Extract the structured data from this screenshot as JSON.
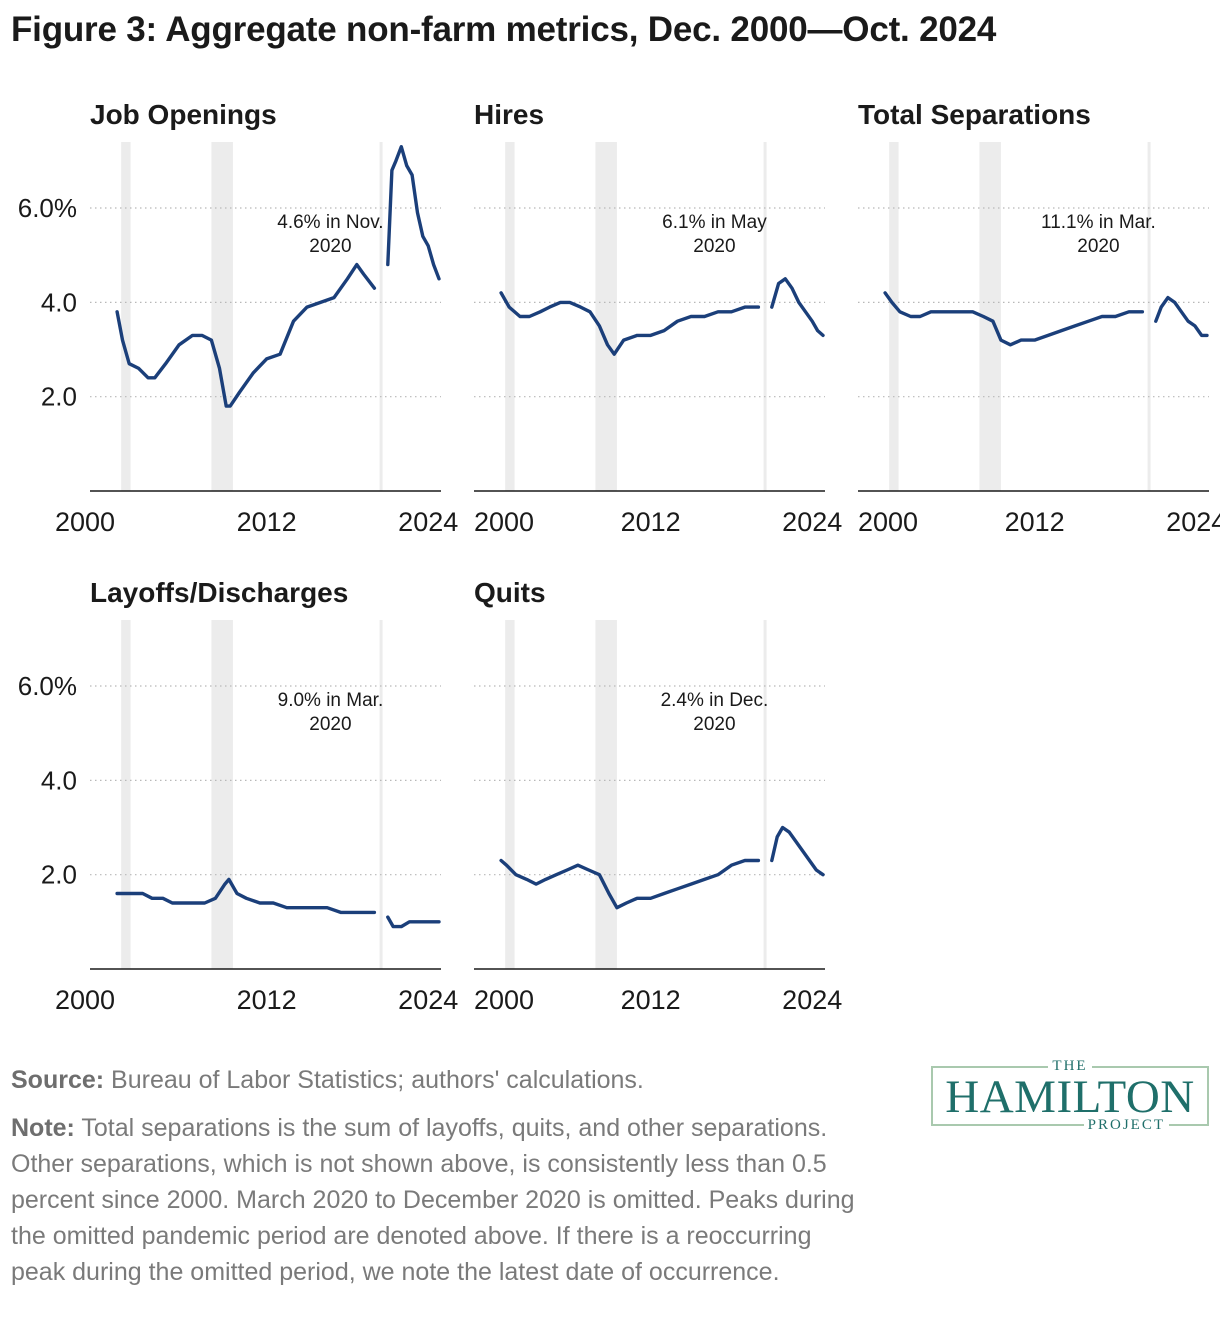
{
  "title": "Figure 3: Aggregate non-farm metrics, Dec. 2000—Oct. 2024",
  "footer": {
    "source_label": "Source:",
    "source_text": " Bureau of Labor Statistics; authors' calculations.",
    "note_label": "Note:",
    "note_text": " Total separations is the sum of layoffs, quits, and other separations. Other separations, which is not shown above, is consistently less than 0.5 percent since 2000. March 2020 to December 2020 is omitted. Peaks during the omitted pandemic period are denoted above. If there is a reoccurring peak during the omitted period, we note the latest date of occurrence."
  },
  "logo": {
    "top": "THE",
    "name": "HAMILTON",
    "bottom": "PROJECT"
  },
  "colors": {
    "line": "#1b3f7a",
    "recession": "#ececec",
    "grid": "#b8b8b8",
    "text": "#1a1a1a"
  },
  "chart_data": [
    {
      "type": "line",
      "title": "Job Openings",
      "xlim": [
        2000,
        2024.8
      ],
      "ylim": [
        0,
        7.4
      ],
      "xticks": [
        2000,
        2012,
        2024
      ],
      "xtick_labels": [
        "2000",
        "2012",
        "2024"
      ],
      "yticks": [
        2,
        4,
        6
      ],
      "ytick_labels": [
        "2.0",
        "4.0",
        "6.0%"
      ],
      "show_y_labels": true,
      "recessions": [
        [
          2001.2,
          2001.9
        ],
        [
          2007.9,
          2009.5
        ]
      ],
      "annotation": [
        "4.6% in Nov.",
        "2020"
      ],
      "segments": [
        {
          "x": [
            2000.9,
            2001.3,
            2001.8,
            2002.5,
            2003.2,
            2003.7,
            2004.5,
            2005.5,
            2006.5,
            2007.2,
            2007.9,
            2008.5,
            2009.0,
            2009.3,
            2010.0,
            2011.0,
            2012.0,
            2013.0,
            2014.0,
            2015.0,
            2016.0,
            2017.0,
            2018.0,
            2018.7,
            2019.2,
            2020.0
          ],
          "y": [
            3.8,
            3.2,
            2.7,
            2.6,
            2.4,
            2.4,
            2.7,
            3.1,
            3.3,
            3.3,
            3.2,
            2.6,
            1.8,
            1.8,
            2.1,
            2.5,
            2.8,
            2.9,
            3.6,
            3.9,
            4.0,
            4.1,
            4.5,
            4.8,
            4.6,
            4.3
          ]
        },
        {
          "x": [
            2021.0,
            2021.3,
            2021.6,
            2022.0,
            2022.4,
            2022.8,
            2023.2,
            2023.6,
            2024.0,
            2024.4,
            2024.8
          ],
          "y": [
            4.8,
            6.8,
            7.0,
            7.3,
            6.9,
            6.7,
            5.9,
            5.4,
            5.2,
            4.8,
            4.5
          ]
        }
      ]
    },
    {
      "type": "line",
      "title": "Hires",
      "xlim": [
        2000,
        2024.8
      ],
      "ylim": [
        0,
        7.4
      ],
      "xticks": [
        2000,
        2012,
        2024
      ],
      "xtick_labels": [
        "2000",
        "2012",
        "2024"
      ],
      "yticks": [
        2,
        4,
        6
      ],
      "ytick_labels": [
        "2.0",
        "4.0",
        "6.0%"
      ],
      "show_y_labels": false,
      "recessions": [
        [
          2001.2,
          2001.9
        ],
        [
          2007.9,
          2009.5
        ]
      ],
      "annotation": [
        "6.1% in May",
        "2020"
      ],
      "segments": [
        {
          "x": [
            2000.9,
            2001.5,
            2002.3,
            2003.0,
            2003.8,
            2004.5,
            2005.3,
            2006.0,
            2006.8,
            2007.5,
            2008.2,
            2008.8,
            2009.3,
            2010.0,
            2011.0,
            2012.0,
            2013.0,
            2014.0,
            2015.0,
            2016.0,
            2017.0,
            2018.0,
            2019.0,
            2020.0
          ],
          "y": [
            4.2,
            3.9,
            3.7,
            3.7,
            3.8,
            3.9,
            4.0,
            4.0,
            3.9,
            3.8,
            3.5,
            3.1,
            2.9,
            3.2,
            3.3,
            3.3,
            3.4,
            3.6,
            3.7,
            3.7,
            3.8,
            3.8,
            3.9,
            3.9
          ]
        },
        {
          "x": [
            2021.0,
            2021.5,
            2022.0,
            2022.5,
            2023.0,
            2023.5,
            2024.0,
            2024.4,
            2024.8
          ],
          "y": [
            3.9,
            4.4,
            4.5,
            4.3,
            4.0,
            3.8,
            3.6,
            3.4,
            3.3
          ]
        }
      ]
    },
    {
      "type": "line",
      "title": "Total Separations",
      "xlim": [
        2000,
        2024.8
      ],
      "ylim": [
        0,
        7.4
      ],
      "xticks": [
        2000,
        2012,
        2024
      ],
      "xtick_labels": [
        "2000",
        "2012",
        "2024"
      ],
      "yticks": [
        2,
        4,
        6
      ],
      "ytick_labels": [
        "2.0",
        "4.0",
        "6.0%"
      ],
      "show_y_labels": false,
      "recessions": [
        [
          2001.2,
          2001.9
        ],
        [
          2007.9,
          2009.5
        ]
      ],
      "annotation": [
        "11.1% in Mar.",
        "2020"
      ],
      "segments": [
        {
          "x": [
            2000.9,
            2001.4,
            2002.0,
            2002.8,
            2003.5,
            2004.3,
            2005.0,
            2005.8,
            2006.6,
            2007.4,
            2008.2,
            2008.9,
            2009.5,
            2010.2,
            2011.0,
            2012.0,
            2013.0,
            2014.0,
            2015.0,
            2016.0,
            2017.0,
            2018.0,
            2019.0,
            2020.0
          ],
          "y": [
            4.2,
            4.0,
            3.8,
            3.7,
            3.7,
            3.8,
            3.8,
            3.8,
            3.8,
            3.8,
            3.7,
            3.6,
            3.2,
            3.1,
            3.2,
            3.2,
            3.3,
            3.4,
            3.5,
            3.6,
            3.7,
            3.7,
            3.8,
            3.8
          ]
        },
        {
          "x": [
            2021.0,
            2021.4,
            2021.9,
            2022.4,
            2022.9,
            2023.4,
            2023.9,
            2024.4,
            2024.8
          ],
          "y": [
            3.6,
            3.9,
            4.1,
            4.0,
            3.8,
            3.6,
            3.5,
            3.3,
            3.3
          ]
        }
      ]
    },
    {
      "type": "line",
      "title": "Layoffs/Discharges",
      "xlim": [
        2000,
        2024.8
      ],
      "ylim": [
        0,
        7.4
      ],
      "xticks": [
        2000,
        2012,
        2024
      ],
      "xtick_labels": [
        "2000",
        "2012",
        "2024"
      ],
      "yticks": [
        2,
        4,
        6
      ],
      "ytick_labels": [
        "2.0",
        "4.0",
        "6.0%"
      ],
      "show_y_labels": true,
      "recessions": [
        [
          2001.2,
          2001.9
        ],
        [
          2007.9,
          2009.5
        ]
      ],
      "annotation": [
        "9.0% in Mar.",
        "2020"
      ],
      "segments": [
        {
          "x": [
            2000.9,
            2001.5,
            2002.0,
            2002.8,
            2003.5,
            2004.3,
            2005.0,
            2005.8,
            2006.6,
            2007.4,
            2008.2,
            2008.9,
            2009.2,
            2009.8,
            2010.5,
            2011.5,
            2012.5,
            2013.5,
            2014.5,
            2015.5,
            2016.5,
            2017.5,
            2018.5,
            2019.3,
            2020.0
          ],
          "y": [
            1.6,
            1.6,
            1.6,
            1.6,
            1.5,
            1.5,
            1.4,
            1.4,
            1.4,
            1.4,
            1.5,
            1.8,
            1.9,
            1.6,
            1.5,
            1.4,
            1.4,
            1.3,
            1.3,
            1.3,
            1.3,
            1.2,
            1.2,
            1.2,
            1.2
          ]
        },
        {
          "x": [
            2021.0,
            2021.4,
            2022.0,
            2022.6,
            2023.2,
            2023.8,
            2024.4,
            2024.8
          ],
          "y": [
            1.1,
            0.9,
            0.9,
            1.0,
            1.0,
            1.0,
            1.0,
            1.0
          ]
        }
      ]
    },
    {
      "type": "line",
      "title": "Quits",
      "xlim": [
        2000,
        2024.8
      ],
      "ylim": [
        0,
        7.4
      ],
      "xticks": [
        2000,
        2012,
        2024
      ],
      "xtick_labels": [
        "2000",
        "2012",
        "2024"
      ],
      "yticks": [
        2,
        4,
        6
      ],
      "ytick_labels": [
        "2.0",
        "4.0",
        "6.0%"
      ],
      "show_y_labels": false,
      "recessions": [
        [
          2001.2,
          2001.9
        ],
        [
          2007.9,
          2009.5
        ]
      ],
      "annotation": [
        "2.4% in Dec.",
        "2020"
      ],
      "segments": [
        {
          "x": [
            2000.9,
            2001.3,
            2002.0,
            2002.8,
            2003.5,
            2004.2,
            2005.0,
            2005.8,
            2006.6,
            2007.4,
            2008.2,
            2008.9,
            2009.5,
            2010.2,
            2011.0,
            2012.0,
            2013.0,
            2014.0,
            2015.0,
            2016.0,
            2017.0,
            2018.0,
            2019.0,
            2020.0
          ],
          "y": [
            2.3,
            2.2,
            2.0,
            1.9,
            1.8,
            1.9,
            2.0,
            2.1,
            2.2,
            2.1,
            2.0,
            1.6,
            1.3,
            1.4,
            1.5,
            1.5,
            1.6,
            1.7,
            1.8,
            1.9,
            2.0,
            2.2,
            2.3,
            2.3
          ]
        },
        {
          "x": [
            2021.0,
            2021.4,
            2021.8,
            2022.3,
            2022.8,
            2023.3,
            2023.8,
            2024.3,
            2024.8
          ],
          "y": [
            2.3,
            2.8,
            3.0,
            2.9,
            2.7,
            2.5,
            2.3,
            2.1,
            2.0
          ]
        }
      ]
    }
  ]
}
